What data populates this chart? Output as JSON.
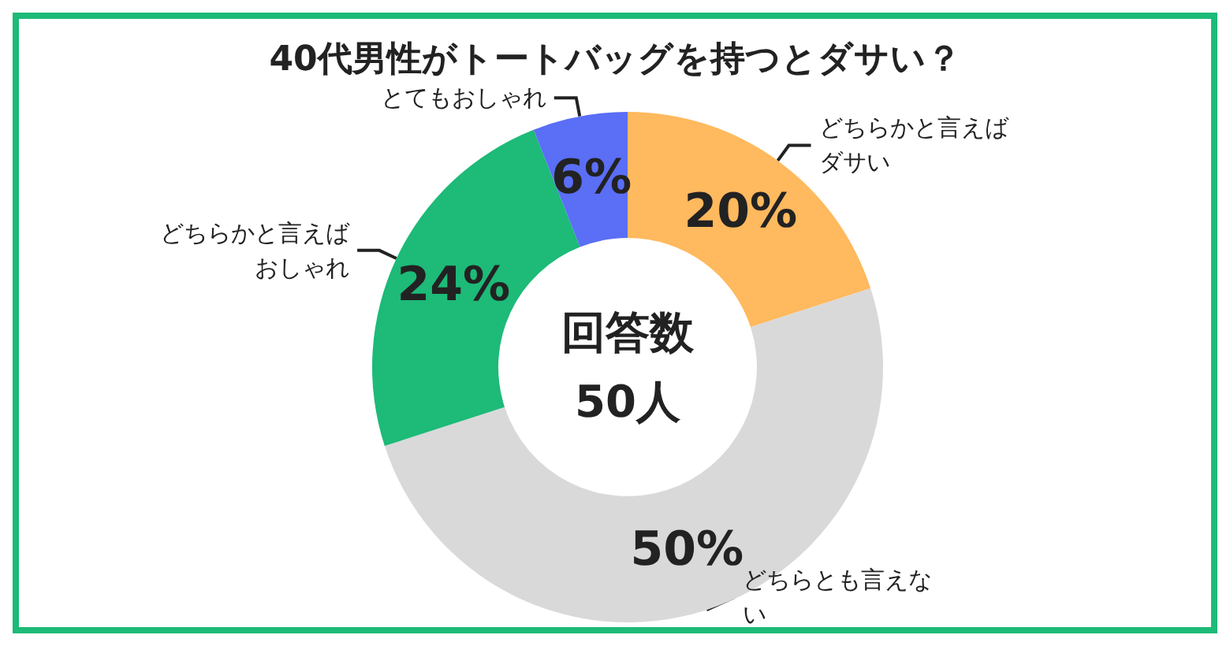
{
  "chart_data": {
    "type": "donut",
    "title": "40代男性がトートバッグを持つとダサい？",
    "categories": [
      "どちらかと言えばダサい",
      "どちらとも言えない",
      "どちらかと言えばおしゃれ",
      "とてもおしゃれ"
    ],
    "values": [
      20,
      50,
      24,
      6
    ],
    "colors": [
      "#ffb95e",
      "#d9d9d9",
      "#1dba78",
      "#5a6ef6"
    ],
    "value_labels": [
      "20%",
      "50%",
      "24%",
      "6%"
    ],
    "annotations": [
      "回答数\n50人"
    ],
    "legend": false
  }
}
